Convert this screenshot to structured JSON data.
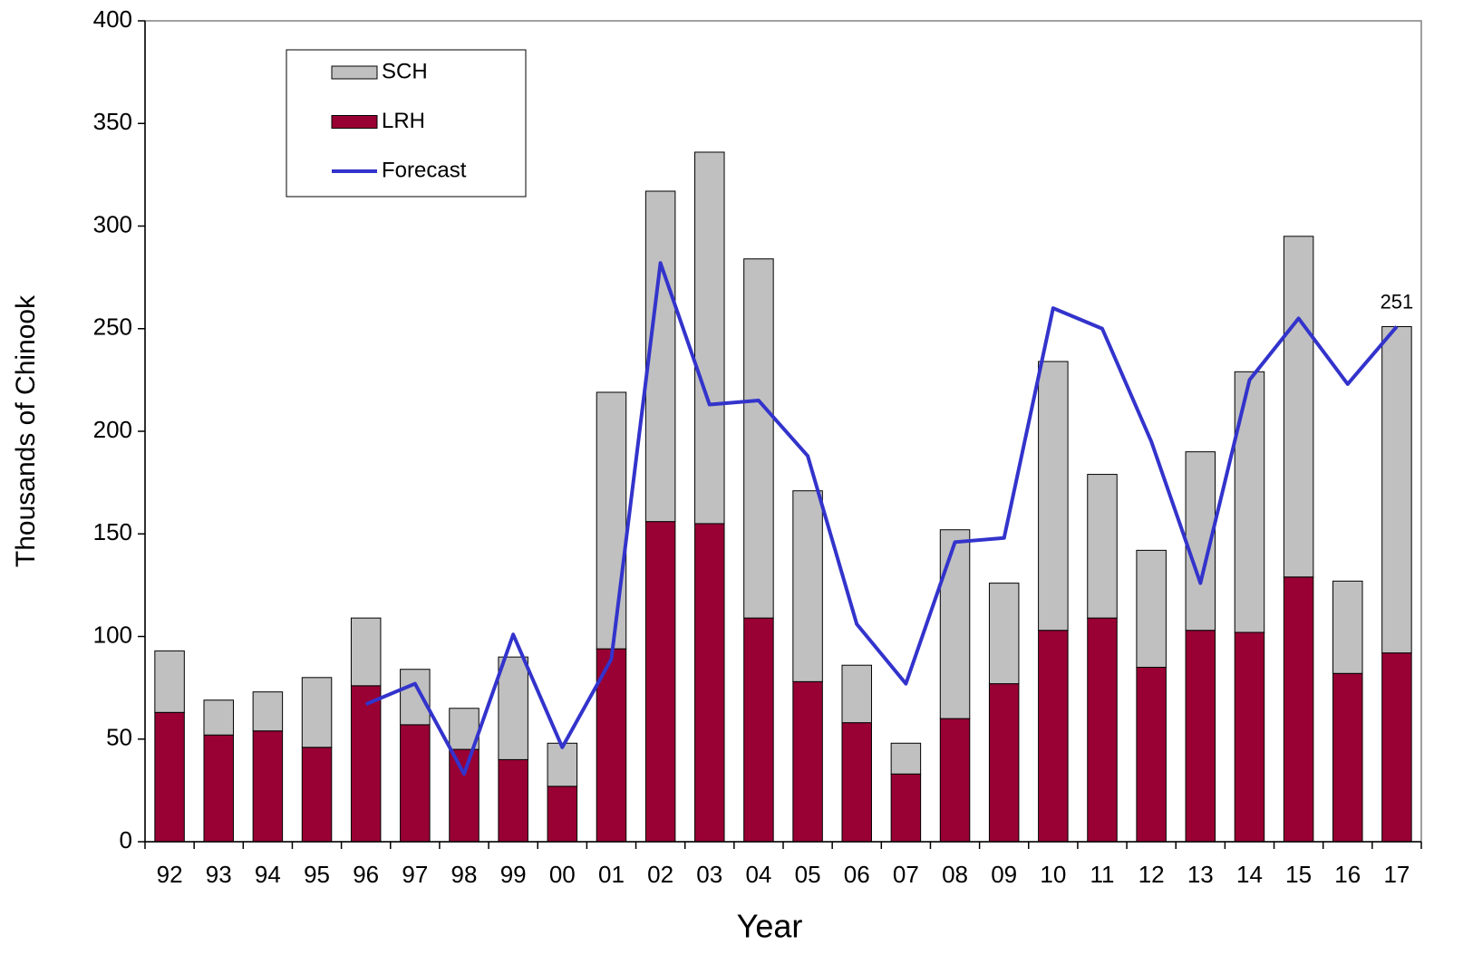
{
  "chart_data": {
    "type": "bar",
    "stacked": true,
    "xlabel": "Year",
    "ylabel": "Thousands of Chinook",
    "categories": [
      "92",
      "93",
      "94",
      "95",
      "96",
      "97",
      "98",
      "99",
      "00",
      "01",
      "02",
      "03",
      "04",
      "05",
      "06",
      "07",
      "08",
      "09",
      "10",
      "11",
      "12",
      "13",
      "14",
      "15",
      "16",
      "17"
    ],
    "series": [
      {
        "name": "SCH",
        "type": "bar",
        "color": "#c0c0c0",
        "values": [
          30,
          17,
          19,
          34,
          33,
          27,
          20,
          50,
          21,
          125,
          161,
          181,
          175,
          93,
          28,
          15,
          92,
          49,
          131,
          70,
          57,
          87,
          127,
          166,
          45,
          159
        ]
      },
      {
        "name": "LRH",
        "type": "bar",
        "color": "#990033",
        "values": [
          63,
          52,
          54,
          46,
          76,
          57,
          45,
          40,
          27,
          94,
          156,
          155,
          109,
          78,
          58,
          33,
          60,
          77,
          103,
          109,
          85,
          103,
          102,
          129,
          82,
          92
        ]
      },
      {
        "name": "Forecast",
        "type": "line",
        "color": "#3333cc",
        "values": [
          null,
          null,
          null,
          null,
          67,
          77,
          33,
          101,
          46,
          89,
          282,
          213,
          215,
          188,
          106,
          77,
          146,
          148,
          260,
          250,
          195,
          126,
          225,
          255,
          223,
          251
        ]
      }
    ],
    "ylim": [
      0,
      400
    ],
    "yticks": [
      0,
      50,
      100,
      150,
      200,
      250,
      300,
      350,
      400
    ],
    "legend": "top-left"
  }
}
